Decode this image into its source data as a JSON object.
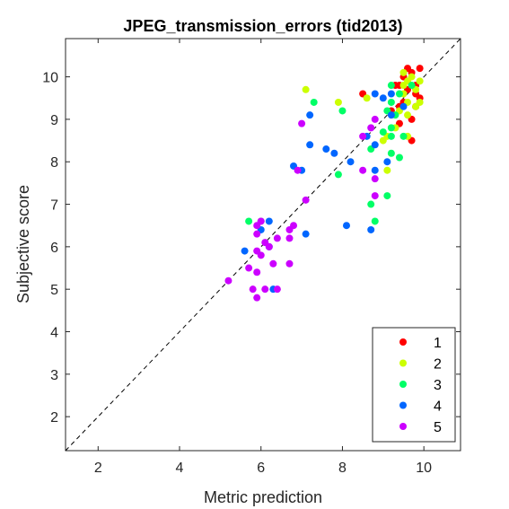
{
  "chart_data": {
    "type": "scatter",
    "title": "JPEG_transmission_errors (tid2013)",
    "xlabel": "Metric prediction",
    "ylabel": "Subjective score",
    "xlim": [
      1.2,
      10.9
    ],
    "ylim": [
      1.2,
      10.9
    ],
    "xticks": [
      2,
      4,
      6,
      8,
      10
    ],
    "yticks": [
      2,
      3,
      4,
      5,
      6,
      7,
      8,
      9,
      10
    ],
    "grid": false,
    "reference_line": "diagonal-dashed",
    "legend_position": "bottom-right",
    "series": [
      {
        "name": "1",
        "color": "#ff0000",
        "points": [
          [
            9.6,
            10.2
          ],
          [
            9.7,
            10.1
          ],
          [
            9.9,
            10.2
          ],
          [
            9.5,
            10.0
          ],
          [
            9.4,
            9.8
          ],
          [
            9.3,
            9.8
          ],
          [
            9.6,
            9.7
          ],
          [
            9.8,
            9.6
          ],
          [
            9.9,
            9.5
          ],
          [
            9.5,
            9.4
          ],
          [
            9.4,
            9.3
          ],
          [
            9.8,
            9.3
          ],
          [
            9.2,
            9.2
          ],
          [
            9.7,
            9.0
          ],
          [
            9.4,
            8.9
          ],
          [
            9.7,
            8.5
          ],
          [
            8.5,
            9.6
          ],
          [
            9.8,
            9.8
          ]
        ]
      },
      {
        "name": "2",
        "color": "#ccff00",
        "points": [
          [
            9.5,
            10.1
          ],
          [
            9.7,
            10.0
          ],
          [
            9.9,
            9.9
          ],
          [
            9.6,
            9.9
          ],
          [
            9.8,
            9.7
          ],
          [
            9.5,
            9.6
          ],
          [
            9.9,
            9.4
          ],
          [
            9.6,
            9.4
          ],
          [
            9.8,
            9.3
          ],
          [
            9.4,
            9.2
          ],
          [
            9.6,
            9.1
          ],
          [
            9.3,
            8.8
          ],
          [
            9.6,
            8.6
          ],
          [
            9.1,
            8.6
          ],
          [
            9.0,
            8.5
          ],
          [
            9.1,
            7.8
          ],
          [
            7.1,
            9.7
          ],
          [
            7.9,
            9.4
          ],
          [
            8.6,
            9.5
          ],
          [
            9.5,
            9.8
          ]
        ]
      },
      {
        "name": "3",
        "color": "#00ff66",
        "points": [
          [
            9.2,
            9.8
          ],
          [
            9.4,
            9.6
          ],
          [
            9.2,
            9.4
          ],
          [
            9.1,
            9.2
          ],
          [
            9.3,
            9.1
          ],
          [
            9.2,
            8.8
          ],
          [
            9.0,
            8.7
          ],
          [
            9.5,
            8.6
          ],
          [
            9.2,
            8.6
          ],
          [
            8.7,
            8.3
          ],
          [
            9.2,
            8.2
          ],
          [
            9.4,
            8.1
          ],
          [
            7.3,
            9.4
          ],
          [
            8.0,
            9.2
          ],
          [
            7.9,
            7.7
          ],
          [
            8.7,
            7.0
          ],
          [
            8.8,
            6.6
          ],
          [
            9.1,
            7.2
          ],
          [
            5.7,
            6.6
          ],
          [
            6.0,
            6.6
          ],
          [
            9.7,
            9.8
          ]
        ]
      },
      {
        "name": "4",
        "color": "#0066ff",
        "points": [
          [
            8.8,
            9.6
          ],
          [
            9.2,
            9.6
          ],
          [
            9.5,
            9.3
          ],
          [
            9.2,
            9.1
          ],
          [
            8.6,
            8.6
          ],
          [
            8.8,
            8.4
          ],
          [
            9.1,
            8.0
          ],
          [
            8.8,
            7.8
          ],
          [
            7.2,
            9.1
          ],
          [
            7.2,
            8.4
          ],
          [
            7.6,
            8.3
          ],
          [
            7.8,
            8.2
          ],
          [
            6.8,
            7.9
          ],
          [
            7.0,
            7.8
          ],
          [
            8.2,
            8.0
          ],
          [
            8.1,
            6.5
          ],
          [
            8.7,
            6.4
          ],
          [
            7.1,
            6.3
          ],
          [
            6.2,
            6.6
          ],
          [
            6.0,
            6.4
          ],
          [
            5.6,
            5.9
          ],
          [
            6.2,
            6.0
          ],
          [
            6.3,
            5.0
          ],
          [
            9.0,
            9.5
          ]
        ]
      },
      {
        "name": "5",
        "color": "#cc00ff",
        "points": [
          [
            8.8,
            9.0
          ],
          [
            8.7,
            8.8
          ],
          [
            8.5,
            8.6
          ],
          [
            8.5,
            7.8
          ],
          [
            8.8,
            7.6
          ],
          [
            8.8,
            7.2
          ],
          [
            6.9,
            7.8
          ],
          [
            7.0,
            8.9
          ],
          [
            7.1,
            7.1
          ],
          [
            6.8,
            6.5
          ],
          [
            6.7,
            6.4
          ],
          [
            6.4,
            6.2
          ],
          [
            6.7,
            6.2
          ],
          [
            5.9,
            6.5
          ],
          [
            6.0,
            6.6
          ],
          [
            5.9,
            6.3
          ],
          [
            6.2,
            6.0
          ],
          [
            6.0,
            5.8
          ],
          [
            5.9,
            5.9
          ],
          [
            6.3,
            5.6
          ],
          [
            5.7,
            5.5
          ],
          [
            5.9,
            5.4
          ],
          [
            6.1,
            5.0
          ],
          [
            6.4,
            5.0
          ],
          [
            5.8,
            5.0
          ],
          [
            5.9,
            4.8
          ],
          [
            5.2,
            5.2
          ],
          [
            6.7,
            5.6
          ],
          [
            6.1,
            6.1
          ]
        ]
      }
    ]
  }
}
